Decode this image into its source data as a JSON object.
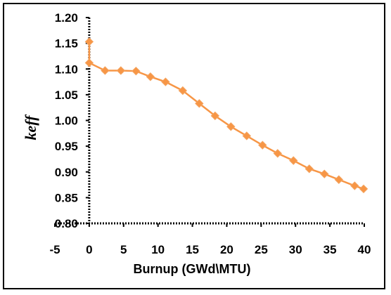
{
  "chart_data": {
    "type": "line",
    "title": "",
    "xlabel": "Burnup (GWd\\MTU)",
    "ylabel": "keff",
    "xlim": [
      -5,
      40
    ],
    "ylim": [
      0.8,
      1.2
    ],
    "x_ticks": [
      "-5",
      "0",
      "5",
      "10",
      "15",
      "20",
      "25",
      "30",
      "35",
      "40"
    ],
    "y_ticks": [
      "0.80",
      "0.85",
      "0.90",
      "0.95",
      "1.00",
      "1.05",
      "1.10",
      "1.15",
      "1.20"
    ],
    "grid": false,
    "legend": "none",
    "series": [
      {
        "color": "#f79646",
        "marker": "diamond",
        "x": [
          0,
          0,
          2.3,
          4.6,
          6.8,
          8.9,
          11.1,
          13.6,
          16.0,
          18.3,
          20.6,
          22.9,
          25.2,
          27.4,
          29.7,
          32.0,
          34.2,
          36.3,
          38.6,
          39.9
        ],
        "y": [
          1.153,
          1.112,
          1.097,
          1.097,
          1.096,
          1.085,
          1.075,
          1.058,
          1.033,
          1.009,
          0.988,
          0.97,
          0.952,
          0.936,
          0.922,
          0.906,
          0.896,
          0.885,
          0.873,
          0.867
        ]
      }
    ]
  }
}
